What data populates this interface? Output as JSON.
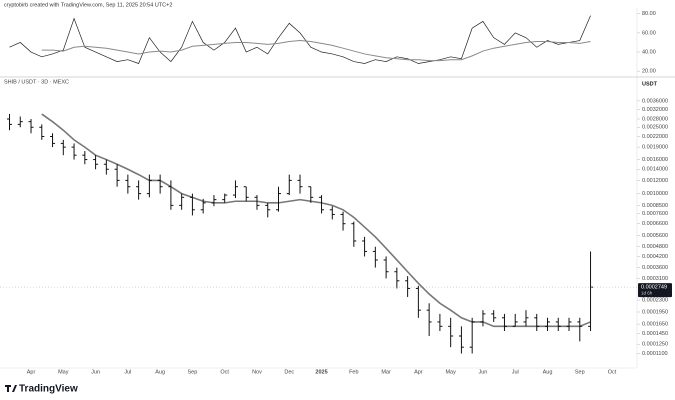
{
  "header": "cryptobirb created with TradingView.com, Sep 11, 2025 20:54 UTC+2",
  "footer": "TradingView",
  "chart_data": [
    {
      "type": "line",
      "ylim": [
        16,
        86
      ],
      "yticks": [
        {
          "value": 80,
          "label": "80.00"
        },
        {
          "value": 60,
          "label": "60.00"
        },
        {
          "value": 40,
          "label": "40.00"
        },
        {
          "value": 20,
          "label": "20.00"
        }
      ],
      "lines": [
        {
          "color": "#222222",
          "values": [
            45,
            50,
            40,
            35,
            38,
            42,
            75,
            45,
            40,
            35,
            30,
            32,
            28,
            55,
            40,
            30,
            45,
            72,
            50,
            42,
            50,
            65,
            40,
            45,
            38,
            55,
            70,
            60,
            45,
            40,
            38,
            35,
            30,
            28,
            32,
            30,
            35,
            33,
            28,
            30,
            32,
            35,
            33,
            65,
            72,
            55,
            48,
            60,
            55,
            45,
            52,
            48,
            50,
            52,
            78,
            null,
            null
          ]
        },
        {
          "color": "#8a8a8a",
          "values": [
            null,
            null,
            null,
            42,
            42,
            41,
            45,
            46,
            45,
            44,
            42,
            40,
            38,
            40,
            41,
            40,
            42,
            46,
            47,
            48,
            49,
            50,
            50,
            49,
            48,
            49,
            51,
            52,
            51,
            49,
            47,
            44,
            41,
            38,
            36,
            34,
            33,
            32,
            32,
            31,
            31,
            32,
            32,
            36,
            41,
            44,
            46,
            48,
            50,
            51,
            51,
            50,
            50,
            49,
            51,
            null,
            null
          ]
        }
      ]
    },
    {
      "type": "ohlc",
      "title": "SHIB / USDT · 3D · MEXC",
      "unit": "USDT",
      "log_scale": true,
      "ylim": [
        9e-05,
        0.0048
      ],
      "yticks": [
        {
          "value": 0.0036,
          "label": "0.0036000"
        },
        {
          "value": 0.0032,
          "label": "0.0032000"
        },
        {
          "value": 0.0028,
          "label": "0.0028000"
        },
        {
          "value": 0.0025,
          "label": "0.0025000"
        },
        {
          "value": 0.0022,
          "label": "0.0022000"
        },
        {
          "value": 0.0019,
          "label": "0.0019000"
        },
        {
          "value": 0.0016,
          "label": "0.0016000"
        },
        {
          "value": 0.0014,
          "label": "0.0014000"
        },
        {
          "value": 0.0012,
          "label": "0.0012000"
        },
        {
          "value": 0.001,
          "label": "0.0010000"
        },
        {
          "value": 0.00085,
          "label": "0.0008500"
        },
        {
          "value": 0.00076,
          "label": "0.0007600"
        },
        {
          "value": 0.00066,
          "label": "0.0006600"
        },
        {
          "value": 0.00056,
          "label": "0.0005600"
        },
        {
          "value": 0.00048,
          "label": "0.0004800"
        },
        {
          "value": 0.00042,
          "label": "0.0004200"
        },
        {
          "value": 0.00036,
          "label": "0.0003600"
        },
        {
          "value": 0.00031,
          "label": "0.0003100"
        },
        {
          "value": 0.00023,
          "label": "0.0002300"
        },
        {
          "value": 0.000195,
          "label": "0.0001950"
        },
        {
          "value": 0.000165,
          "label": "0.0001650"
        },
        {
          "value": 0.000145,
          "label": "0.0001450"
        },
        {
          "value": 0.000125,
          "label": "0.0001250"
        },
        {
          "value": 0.00011,
          "label": "0.0001100"
        }
      ],
      "categories": [
        null,
        null,
        "Apr",
        null,
        null,
        "May",
        null,
        null,
        "Jun",
        null,
        null,
        "Jul",
        null,
        null,
        "Aug",
        null,
        null,
        "Sep",
        null,
        null,
        "Oct",
        null,
        null,
        "Nov",
        null,
        null,
        "Dec",
        null,
        null,
        "2025",
        null,
        null,
        "Feb",
        null,
        null,
        "Mar",
        null,
        null,
        "Apr",
        null,
        null,
        "May",
        null,
        null,
        "Jun",
        null,
        null,
        "Jul",
        null,
        null,
        "Aug",
        null,
        null,
        "Sep",
        null,
        null,
        "Oct"
      ],
      "color": "#111111",
      "open": [
        0.0028,
        0.0026,
        0.0027,
        0.0025,
        0.0022,
        0.002,
        0.0019,
        0.0017,
        0.0016,
        0.0015,
        0.0014,
        0.0012,
        0.0011,
        0.001,
        0.0012,
        0.0011,
        0.00085,
        0.00095,
        0.0008,
        0.00088,
        0.00092,
        0.00098,
        0.0011,
        0.00095,
        0.00085,
        0.0008,
        0.001,
        0.0012,
        0.0011,
        0.00095,
        0.0008,
        0.00075,
        0.00066,
        0.00052,
        0.00045,
        0.0004,
        0.00034,
        0.0003,
        0.00027,
        0.0002,
        0.00017,
        0.00016,
        0.00014,
        0.00012,
        0.00017,
        0.00019,
        0.00018,
        0.00016,
        0.00017,
        0.00018,
        0.00016,
        0.00017,
        0.00016,
        0.00017,
        0.00016,
        null,
        null
      ],
      "high": [
        0.003,
        0.0029,
        0.0028,
        0.0026,
        0.0023,
        0.0021,
        0.002,
        0.0018,
        0.0017,
        0.0016,
        0.0015,
        0.0013,
        0.0012,
        0.0013,
        0.0013,
        0.0012,
        0.001,
        0.001,
        0.00093,
        0.00098,
        0.001,
        0.0012,
        0.0011,
        0.00098,
        0.00088,
        0.0011,
        0.0013,
        0.0013,
        0.0011,
        0.00098,
        0.00084,
        0.00078,
        0.00068,
        0.00055,
        0.00048,
        0.00042,
        0.00036,
        0.00032,
        0.00028,
        0.00022,
        0.00019,
        0.00018,
        0.00016,
        0.00018,
        0.0002,
        0.0002,
        0.00019,
        0.00019,
        0.0002,
        0.00019,
        0.00018,
        0.00018,
        0.00018,
        0.00018,
        0.00045,
        null,
        null
      ],
      "low": [
        0.0024,
        0.0025,
        0.0023,
        0.0021,
        0.0019,
        0.0017,
        0.0016,
        0.0015,
        0.0014,
        0.0013,
        0.0011,
        0.001,
        0.00092,
        0.00095,
        0.001,
        0.0008,
        0.0008,
        0.00074,
        0.00076,
        0.00084,
        0.00088,
        0.00094,
        0.0009,
        0.0008,
        0.00072,
        0.00078,
        0.00098,
        0.001,
        0.00088,
        0.00076,
        0.0007,
        0.0006,
        0.00048,
        0.00042,
        0.00036,
        0.00031,
        0.00027,
        0.00024,
        0.00018,
        0.00014,
        0.00015,
        0.00012,
        0.00011,
        0.00011,
        0.00016,
        0.00017,
        0.00015,
        0.00016,
        0.00016,
        0.00015,
        0.00015,
        0.00015,
        0.00015,
        0.00013,
        0.00015,
        null,
        null
      ],
      "close": [
        0.0026,
        0.0027,
        0.0025,
        0.0022,
        0.002,
        0.0019,
        0.0017,
        0.0016,
        0.0015,
        0.0014,
        0.0012,
        0.0011,
        0.001,
        0.0012,
        0.0011,
        0.00085,
        0.00095,
        0.0008,
        0.00088,
        0.00092,
        0.00098,
        0.0011,
        0.00095,
        0.00085,
        0.0008,
        0.001,
        0.0012,
        0.0011,
        0.00095,
        0.0008,
        0.00075,
        0.00066,
        0.00052,
        0.00045,
        0.0004,
        0.00034,
        0.0003,
        0.00027,
        0.0002,
        0.00017,
        0.00016,
        0.00014,
        0.00012,
        0.00017,
        0.00019,
        0.00018,
        0.00016,
        0.00017,
        0.00018,
        0.00016,
        0.00017,
        0.00016,
        0.00017,
        0.00016,
        0.0002749,
        null,
        null
      ],
      "lines": [
        {
          "color": "#777777",
          "values": [
            null,
            null,
            null,
            0.003,
            0.0027,
            0.0024,
            0.0021,
            0.0019,
            0.0017,
            0.0016,
            0.0015,
            0.0014,
            0.0013,
            0.0012,
            0.0012,
            0.0011,
            0.001,
            0.00095,
            0.0009,
            0.00088,
            0.00088,
            0.0009,
            0.0009,
            0.0009,
            0.00088,
            0.00088,
            0.0009,
            0.00092,
            0.0009,
            0.00088,
            0.00085,
            0.0008,
            0.00072,
            0.00063,
            0.00055,
            0.00047,
            0.0004,
            0.00034,
            0.00029,
            0.00025,
            0.00022,
            0.0002,
            0.00018,
            0.00017,
            0.00017,
            0.00016,
            0.00016,
            0.00016,
            0.00016,
            0.00016,
            0.00016,
            0.00016,
            0.00016,
            0.00016,
            0.00017,
            null,
            null
          ]
        }
      ],
      "price_label": {
        "value": 0.0002749,
        "label": "0.0002749"
      },
      "countdown": "1d 6h"
    }
  ]
}
